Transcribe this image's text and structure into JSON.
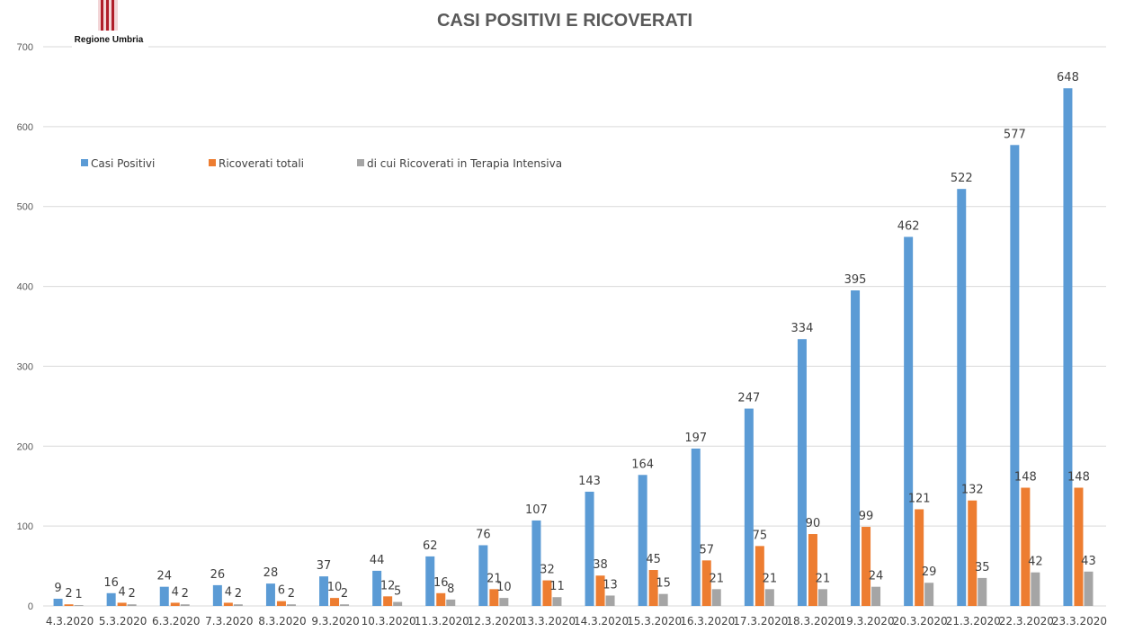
{
  "logo": {
    "text": "Regione Umbria",
    "color": "#b01e2a"
  },
  "chart_data": {
    "type": "bar",
    "title": "CASI POSITIVI E RICOVERATI",
    "xlabel": "",
    "ylabel": "",
    "ylim": [
      0,
      700
    ],
    "yticks": [
      0,
      100,
      200,
      300,
      400,
      500,
      600,
      700
    ],
    "grid": true,
    "legend_position": "top-left",
    "categories": [
      "4.3.2020",
      "5.3.2020",
      "6.3.2020",
      "7.3.2020",
      "8.3.2020",
      "9.3.2020",
      "10.3.2020",
      "11.3.2020",
      "12.3.2020",
      "13.3.2020",
      "14.3.2020",
      "15.3.2020",
      "16.3.2020",
      "17.3.2020",
      "18.3.2020",
      "19.3.2020",
      "20.3.2020",
      "21.3.2020",
      "22.3.2020",
      "23.3.2020"
    ],
    "series": [
      {
        "name": "Casi Positivi",
        "color": "#5b9bd5",
        "values": [
          9,
          16,
          24,
          26,
          28,
          37,
          44,
          62,
          76,
          107,
          143,
          164,
          197,
          247,
          334,
          395,
          462,
          522,
          577,
          648
        ]
      },
      {
        "name": "Ricoverati totali",
        "color": "#ed7d31",
        "values": [
          2,
          4,
          4,
          4,
          6,
          10,
          12,
          16,
          21,
          32,
          38,
          45,
          57,
          75,
          90,
          99,
          121,
          132,
          148,
          148
        ]
      },
      {
        "name": "di cui Ricoverati in Terapia Intensiva",
        "color": "#a5a5a5",
        "values": [
          1,
          2,
          2,
          2,
          2,
          2,
          5,
          8,
          10,
          11,
          13,
          15,
          21,
          21,
          21,
          24,
          29,
          35,
          42,
          43
        ]
      }
    ]
  }
}
